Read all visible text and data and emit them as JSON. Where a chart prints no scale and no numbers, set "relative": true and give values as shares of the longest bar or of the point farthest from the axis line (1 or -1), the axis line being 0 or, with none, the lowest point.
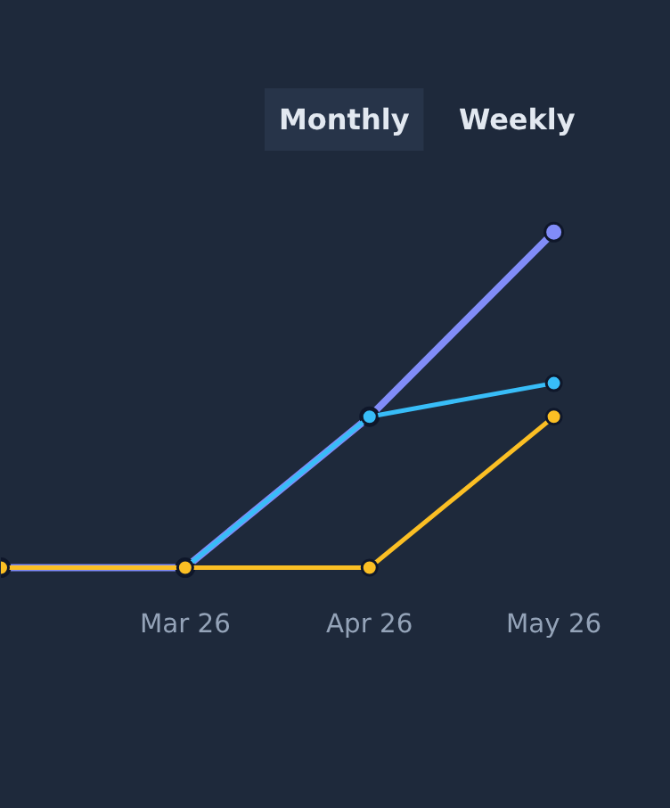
{
  "chart_data": {
    "type": "line",
    "relative": true,
    "categories": [
      null,
      "Mar 26",
      "Apr 26",
      "May 26"
    ],
    "series": [
      {
        "color": "#818cf8",
        "values": [
          0,
          0,
          0.45,
          1
        ]
      },
      {
        "color": "#38bdf8",
        "values": [
          0,
          0,
          0.45,
          0.55
        ]
      },
      {
        "color": "#fbbf24",
        "values": [
          0,
          0,
          0,
          0.45
        ]
      }
    ],
    "marker": "circle",
    "annotations": [
      "Monthly",
      "Weekly"
    ]
  }
}
